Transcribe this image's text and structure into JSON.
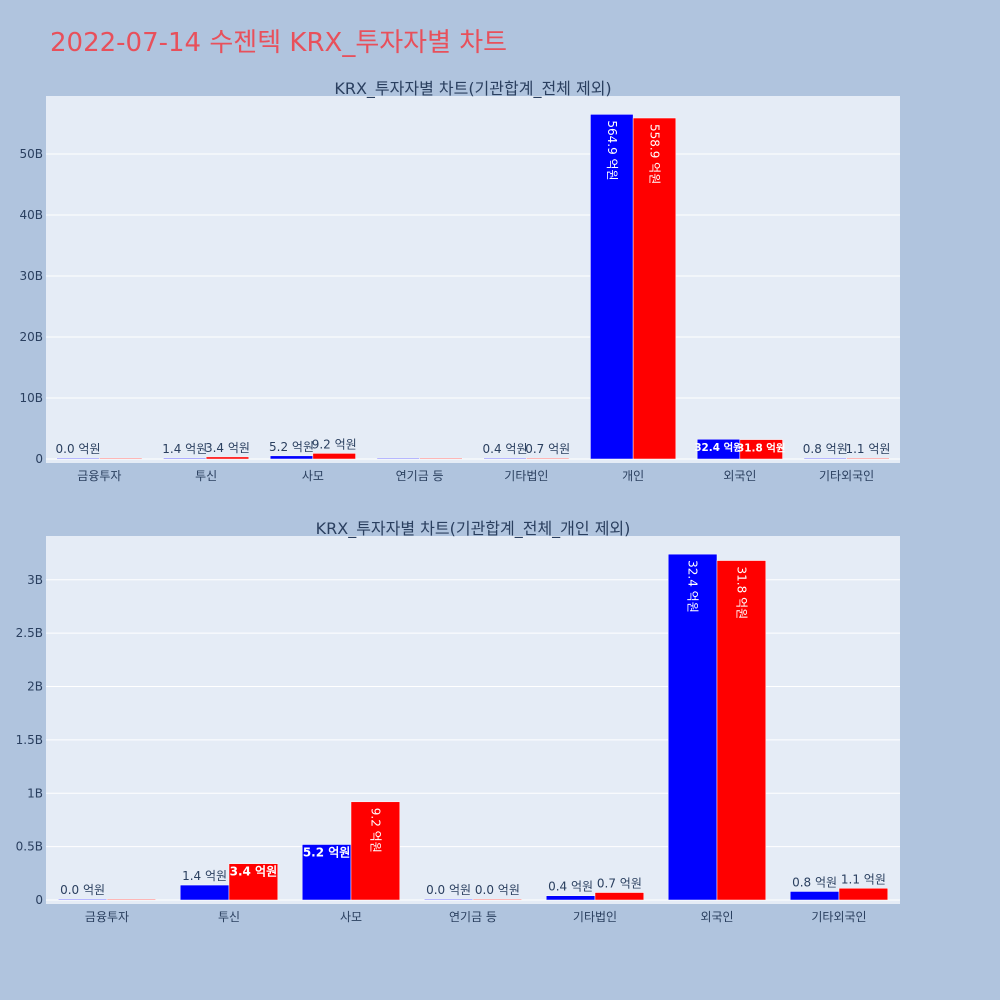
{
  "page_title": "2022-07-14 수젠텍 KRX_투자자별 차트",
  "colors": {
    "background": "#b0c4de",
    "plot_background": "#e5ecf6",
    "title": "#e8505b",
    "series_a": "#0000ff",
    "series_b": "#ff0000"
  },
  "chart_data": [
    {
      "type": "bar",
      "title": "KRX_투자자별 차트(기관합계_전체 제외)",
      "categories": [
        "금융투자",
        "투신",
        "사모",
        "연기금 등",
        "기타법인",
        "개인",
        "외국인",
        "기타외국인"
      ],
      "series": [
        {
          "color": "#0000ff",
          "values": [
            0.0,
            0.14,
            0.52,
            0.0,
            0.04,
            56.49,
            3.24,
            0.08
          ],
          "labels": [
            "0.0 억원",
            "1.4 억원",
            "5.2 억원",
            "",
            "0.4 억원",
            "564.9 억원",
            "32.4 억원",
            "0.8 억원"
          ]
        },
        {
          "color": "#ff0000",
          "values": [
            0.0,
            0.34,
            0.92,
            0.0,
            0.07,
            55.89,
            3.18,
            0.11
          ],
          "labels": [
            "",
            "3.4 억원",
            "9.2 억원",
            "",
            "0.7 억원",
            "558.9 억원",
            "31.8 억원",
            "1.1 억원"
          ]
        }
      ],
      "yticks": [
        0,
        10,
        20,
        30,
        40,
        50
      ],
      "ytick_labels": [
        "0",
        "10B",
        "20B",
        "30B",
        "40B",
        "50B"
      ],
      "ylim": [
        0,
        59.5
      ],
      "grid": true,
      "legend": "none"
    },
    {
      "type": "bar",
      "title": "KRX_투자자별 차트(기관합계_전체_개인 제외)",
      "categories": [
        "금융투자",
        "투신",
        "사모",
        "연기금 등",
        "기타법인",
        "외국인",
        "기타외국인"
      ],
      "series": [
        {
          "color": "#0000ff",
          "values": [
            0.0,
            0.14,
            0.52,
            0.0,
            0.04,
            3.24,
            0.08
          ],
          "labels": [
            "0.0 억원",
            "1.4 억원",
            "5.2 억원",
            "0.0 억원",
            "0.4 억원",
            "32.4 억원",
            "0.8 억원"
          ]
        },
        {
          "color": "#ff0000",
          "values": [
            0.0,
            0.34,
            0.92,
            0.0,
            0.07,
            3.18,
            0.11
          ],
          "labels": [
            "",
            "3.4 억원",
            "9.2 억원",
            "0.0 억원",
            "0.7 억원",
            "31.8 억원",
            "1.1 억원"
          ]
        }
      ],
      "yticks": [
        0,
        0.5,
        1,
        1.5,
        2,
        2.5,
        3
      ],
      "ytick_labels": [
        "0",
        "0.5B",
        "1B",
        "1.5B",
        "2B",
        "2.5B",
        "3B"
      ],
      "ylim": [
        0,
        3.41
      ],
      "grid": true,
      "legend": "none"
    }
  ]
}
